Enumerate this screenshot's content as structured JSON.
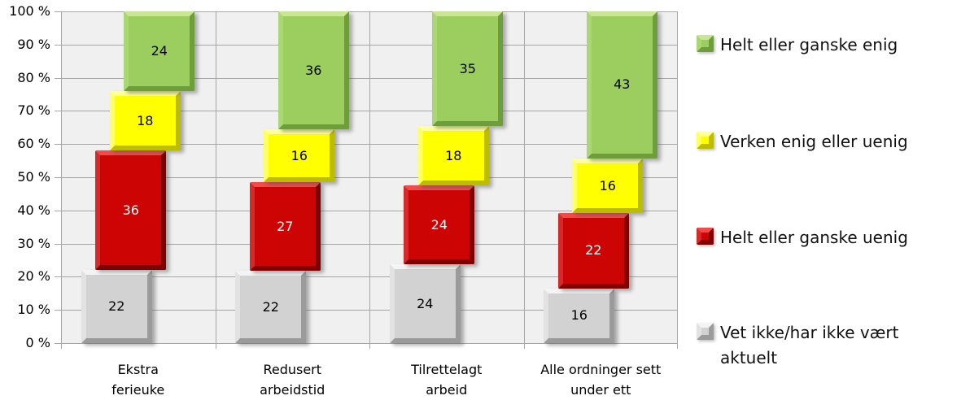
{
  "chart_data": {
    "type": "bar",
    "variant": "stacked-percent-column",
    "title": "",
    "xlabel": "",
    "ylabel": "",
    "ylim": [
      0,
      100
    ],
    "grid": true,
    "legend_position": "right",
    "y_ticks": [
      "100 %",
      "90 %",
      "80 %",
      "70 %",
      "60 %",
      "50 %",
      "40 %",
      "30 %",
      "20 %",
      "10 %",
      "0 %"
    ],
    "categories": [
      "Ekstra ferieuke",
      "Redusert arbeidstid",
      "Tilrettelagt arbeid",
      "Alle ordninger sett under ett"
    ],
    "category_label_lines": [
      [
        "Ekstra",
        "ferieuke"
      ],
      [
        "Redusert",
        "arbeidstid"
      ],
      [
        "Tilrettelagt",
        "arbeid"
      ],
      [
        "Alle ordninger sett",
        "under ett"
      ]
    ],
    "series": [
      {
        "name": "Vet ikke/har ikke vært aktuelt",
        "values": [
          22,
          22,
          24,
          16
        ],
        "color": "#d2d2d2",
        "color_light": "#f4f4f4",
        "color_mid": "#e2e2e2",
        "color_dark": "#9b9b9b",
        "label_color": "#000000"
      },
      {
        "name": "Helt eller ganske uenig",
        "values": [
          36,
          27,
          24,
          22
        ],
        "color": "#cc0404",
        "color_light": "#ee4b4b",
        "color_mid": "#d42a2a",
        "color_dark": "#7e0000",
        "label_color": "#ffffff"
      },
      {
        "name": "Verken enig eller uenig",
        "values": [
          18,
          16,
          18,
          16
        ],
        "color": "#ffff00",
        "color_light": "#ffffa0",
        "color_mid": "#ffff66",
        "color_dark": "#bdbd00",
        "label_color": "#000000"
      },
      {
        "name": "Helt eller ganske enig",
        "values": [
          24,
          36,
          35,
          43
        ],
        "color": "#9cce5f",
        "color_light": "#c9e695",
        "color_mid": "#aad674",
        "color_dark": "#6e9e3b",
        "label_color": "#000000"
      }
    ],
    "legend_order_series_indexes": [
      3,
      2,
      1,
      0
    ],
    "colors": {
      "plot_background": "#f0f0f0",
      "gridline": "#a6a6a6",
      "page_background": "#ffffff",
      "axis_text": "#000000"
    }
  }
}
